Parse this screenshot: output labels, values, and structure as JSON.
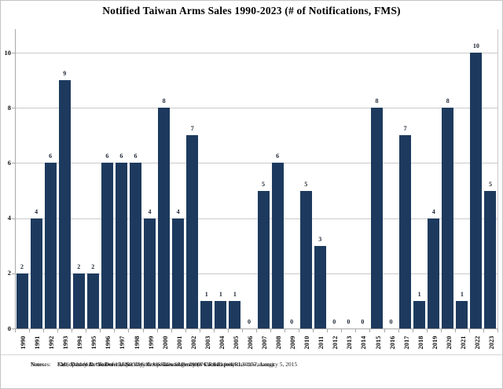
{
  "title": "Notified Taiwan Arms Sales 1990-2023 (# of Notifications, FMS)",
  "chart_data": {
    "type": "bar",
    "title": "Notified Taiwan Arms Sales 1990-2023 (# of Notifications, FMS)",
    "categories": [
      "1990",
      "1991",
      "1992",
      "1993",
      "1994",
      "1995",
      "1996",
      "1997",
      "1998",
      "1999",
      "2000",
      "2001",
      "2002",
      "2003",
      "2004",
      "2005",
      "2006",
      "2007",
      "2008",
      "2009",
      "2010",
      "2011",
      "2012",
      "2013",
      "2014",
      "2015",
      "2016",
      "2017",
      "2018",
      "2019",
      "2020",
      "2021",
      "2022",
      "2023"
    ],
    "values": [
      2,
      4,
      6,
      9,
      2,
      2,
      6,
      6,
      6,
      4,
      8,
      4,
      7,
      1,
      1,
      1,
      0,
      5,
      6,
      0,
      5,
      3,
      0,
      0,
      0,
      8,
      0,
      7,
      1,
      4,
      8,
      1,
      10,
      5
    ],
    "xlabel": "",
    "ylabel": "",
    "ylim": [
      0,
      10
    ],
    "yticks": [
      0,
      2,
      4,
      6,
      8,
      10
    ],
    "grid": true,
    "legend": "none",
    "value_labels": true,
    "bar_color": "#1d3a5e"
  },
  "colors": {
    "bar": "#1d3a5e",
    "gridline": "#c9c9c9",
    "axis": "#a9a9a9",
    "text": "#111111",
    "background": "#ffffff"
  },
  "footer": {
    "sources_label": "Sources:",
    "notes_label": "Notes:",
    "source_line1": "FMS Data from the Defense Security Cooperation Agency (www.dsca.mil)",
    "source_line2_prefix": "Kan, Shirley A. “",
    "source_line2_italic": "Taiwan: Major U.S. Arms Sales Since 1990",
    "source_line2_suffix": "” CRS Report RL30957, January 5, 2015",
    "notes_line": "Last updated December 15, 2023 by the US-Taiwan Business Council (www.us-taiwan.org)."
  }
}
